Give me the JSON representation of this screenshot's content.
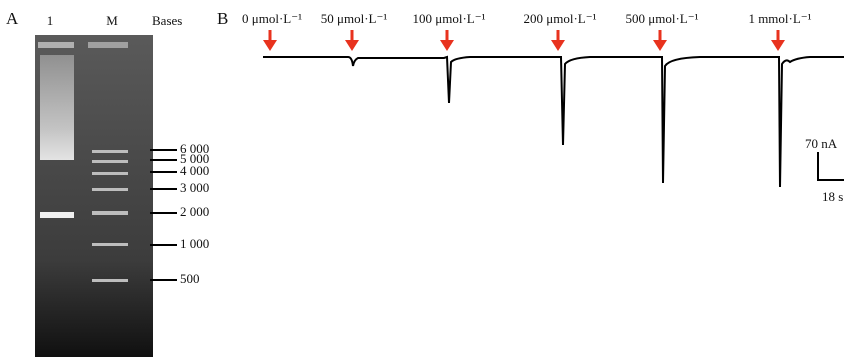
{
  "panel_a": {
    "label": "A",
    "lanes": [
      "1",
      "M"
    ],
    "marker_title": "Bases",
    "markers": [
      "6 000",
      "5 000",
      "4 000",
      "3 000",
      "2 000",
      "1 000",
      "500"
    ]
  },
  "panel_b": {
    "label": "B",
    "additions": [
      "0 μmol·L⁻¹",
      "50 μmol·L⁻¹",
      "100 μmol·L⁻¹",
      "200 μmol·L⁻¹",
      "500 μmol·L⁻¹",
      "1 mmol·L⁻¹"
    ],
    "scale_current": "70 nA",
    "scale_time": "18 s"
  }
}
